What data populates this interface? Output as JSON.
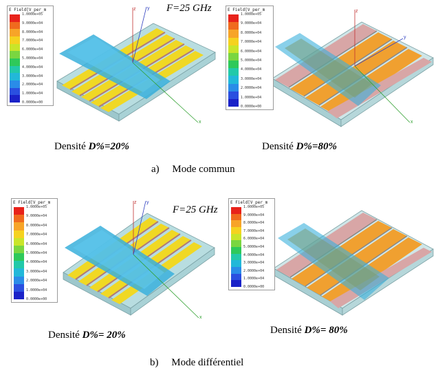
{
  "frequency_label": "F=25 GHz",
  "legend": {
    "title": "E Field[V_per_m",
    "colors": [
      "#e8221a",
      "#f06a1e",
      "#f7a428",
      "#f5d21f",
      "#c9e52a",
      "#7ad640",
      "#2ec95a",
      "#22c9a9",
      "#22b8d9",
      "#2a8ce8",
      "#2a4fe0",
      "#1a22c8"
    ],
    "ticks_short": [
      "1.0000e+05",
      "9.0000e+04",
      "8.0000e+04",
      "7.0000e+04",
      "6.0000e+04",
      "5.0000e+04",
      "4.0000e+04",
      "3.0000e+04",
      "2.0000e+04",
      "1.0000e+04",
      "0.0000e+00"
    ],
    "ticks_long": [
      "1.0000e+05",
      "9.0000e+04",
      "8.0000e+04",
      "7.0000e+04",
      "6.0000e+04",
      "5.0000e+04",
      "4.0000e+04",
      "3.0000e+04",
      "2.0000e+04",
      "1.0000e+04",
      "0.0000e+00"
    ]
  },
  "axes": {
    "z": "z",
    "y": "y",
    "x": "x"
  },
  "panels": [
    {
      "caption_prefix": "Densité ",
      "caption_value": "D%=20%"
    },
    {
      "caption_prefix": "Densité ",
      "caption_value": "D%=80%"
    },
    {
      "caption_prefix": "Densité ",
      "caption_value": "D%= 20%"
    },
    {
      "caption_prefix": "Densité ",
      "caption_value": "D%= 80%"
    }
  ],
  "subcaptions": {
    "a": "a)",
    "a_text": "Mode commun",
    "b": "b)",
    "b_text": "Mode différentiel"
  }
}
